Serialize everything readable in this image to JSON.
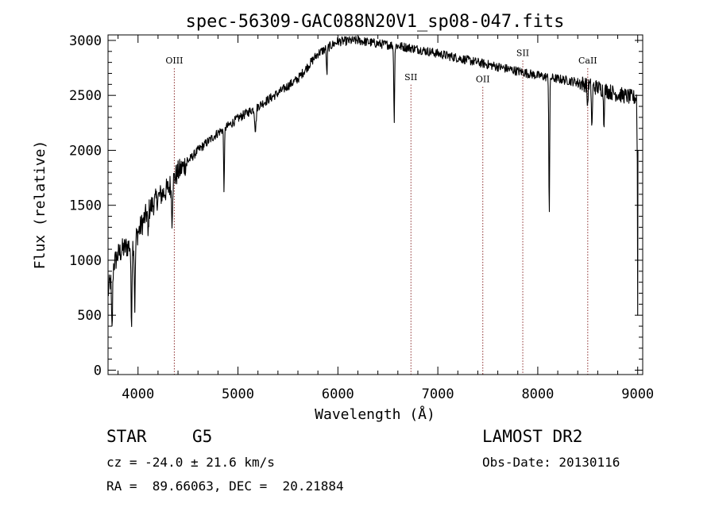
{
  "chart_data": {
    "type": "line",
    "title": "spec-56309-GAC088N20V1_sp08-047.fits",
    "xlabel": "Wavelength (Å)",
    "ylabel": "Flux (relative)",
    "xlim": [
      3700,
      9050
    ],
    "ylim": [
      -40,
      3050
    ],
    "x_ticks": [
      4000,
      5000,
      6000,
      7000,
      8000,
      9000
    ],
    "y_ticks": [
      0,
      500,
      1000,
      1500,
      2000,
      2500,
      3000
    ],
    "grid": false,
    "legend": "none",
    "line_color": "#000000",
    "marker_color": "#8b2c2c",
    "continuum": [
      [
        3700,
        700
      ],
      [
        3750,
        950
      ],
      [
        3800,
        1050
      ],
      [
        3850,
        1100
      ],
      [
        3900,
        1130
      ],
      [
        3950,
        1150
      ],
      [
        4000,
        1250
      ],
      [
        4100,
        1450
      ],
      [
        4200,
        1570
      ],
      [
        4300,
        1650
      ],
      [
        4400,
        1800
      ],
      [
        4500,
        1900
      ],
      [
        4600,
        2000
      ],
      [
        4700,
        2080
      ],
      [
        4800,
        2160
      ],
      [
        4900,
        2220
      ],
      [
        5000,
        2290
      ],
      [
        5200,
        2400
      ],
      [
        5400,
        2520
      ],
      [
        5600,
        2650
      ],
      [
        5800,
        2880
      ],
      [
        6000,
        2990
      ],
      [
        6200,
        3000
      ],
      [
        6400,
        2970
      ],
      [
        6600,
        2950
      ],
      [
        6800,
        2920
      ],
      [
        7000,
        2880
      ],
      [
        7200,
        2840
      ],
      [
        7400,
        2800
      ],
      [
        7600,
        2760
      ],
      [
        7800,
        2720
      ],
      [
        8000,
        2680
      ],
      [
        8200,
        2650
      ],
      [
        8400,
        2620
      ],
      [
        8600,
        2570
      ],
      [
        8800,
        2510
      ],
      [
        8950,
        2480
      ]
    ],
    "absorption_lines": [
      {
        "x": 3740,
        "depth": 550,
        "width": 8
      },
      {
        "x": 3934,
        "depth": 700,
        "width": 7
      },
      {
        "x": 3968,
        "depth": 600,
        "width": 7
      },
      {
        "x": 4101,
        "depth": 250,
        "width": 6
      },
      {
        "x": 4340,
        "depth": 330,
        "width": 7
      },
      {
        "x": 4861,
        "depth": 550,
        "width": 6
      },
      {
        "x": 5175,
        "depth": 200,
        "width": 10
      },
      {
        "x": 5890,
        "depth": 250,
        "width": 6
      },
      {
        "x": 6563,
        "depth": 680,
        "width": 6
      },
      {
        "x": 8115,
        "depth": 1250,
        "width": 6
      },
      {
        "x": 8498,
        "depth": 200,
        "width": 6
      },
      {
        "x": 8542,
        "depth": 400,
        "width": 6
      },
      {
        "x": 8662,
        "depth": 300,
        "width": 6
      }
    ],
    "noise_amplitude": 60,
    "annotations": [
      {
        "label": "OIII",
        "x": 4363,
        "y_label": 2790
      },
      {
        "label": "SII",
        "x": 6731,
        "y_label": 2640
      },
      {
        "label": "OII",
        "x": 7450,
        "y_label": 2620
      },
      {
        "label": "SII",
        "x": 7850,
        "y_label": 2860
      },
      {
        "label": "CaII",
        "x": 8500,
        "y_label": 2790
      }
    ]
  },
  "info": {
    "object_class": "STAR",
    "subclass": "G5",
    "survey": "LAMOST DR2",
    "redshift": "cz = -24.0 ± 21.6 km/s",
    "obs_date": "Obs-Date: 20130116",
    "coords": "RA =  89.66063, DEC =  20.21884"
  }
}
